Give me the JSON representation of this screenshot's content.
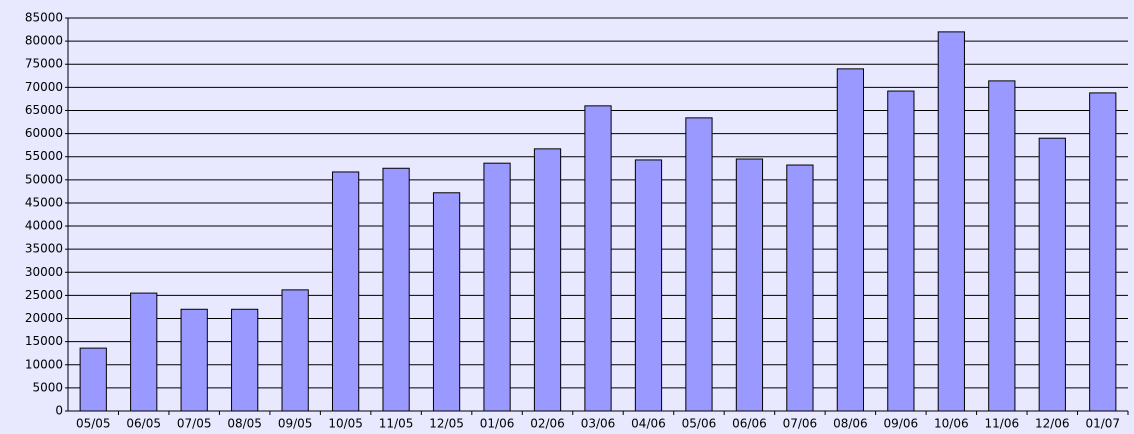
{
  "chart_data": {
    "type": "bar",
    "categories": [
      "05/05",
      "06/05",
      "07/05",
      "08/05",
      "09/05",
      "10/05",
      "11/05",
      "12/05",
      "01/06",
      "02/06",
      "03/06",
      "04/06",
      "05/06",
      "06/06",
      "07/06",
      "08/06",
      "09/06",
      "10/06",
      "11/06",
      "12/06",
      "01/07"
    ],
    "values": [
      13600,
      25500,
      22000,
      22000,
      26200,
      51700,
      52500,
      47200,
      53600,
      56700,
      66000,
      54300,
      63400,
      54500,
      53200,
      74000,
      69200,
      82000,
      71400,
      59000,
      68800
    ],
    "color": "#9999ff",
    "ylim": [
      0,
      85000
    ],
    "yticks": [
      0,
      5000,
      10000,
      15000,
      20000,
      25000,
      30000,
      35000,
      40000,
      45000,
      50000,
      55000,
      60000,
      65000,
      70000,
      75000,
      80000,
      85000
    ],
    "grid": true
  }
}
